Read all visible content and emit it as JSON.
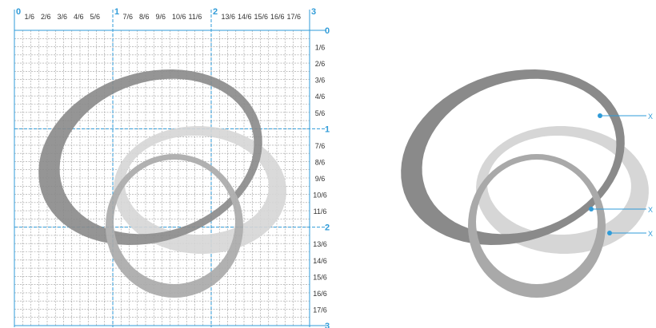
{
  "colors": {
    "grid_minor": "#9c9c9c",
    "grid_major": "#2f9bd8",
    "ring_dark": "#8a8a8a",
    "ring_mid": "#a9a9a9",
    "ring_light": "#d6d6d6",
    "label": "#333333",
    "callout": "#2f9bd8"
  },
  "grid": {
    "top_labels": [
      "0",
      "1/6",
      "2/6",
      "3/6",
      "4/6",
      "5/6",
      "1",
      "7/6",
      "8/6",
      "9/6",
      "10/6",
      "11/6",
      "2",
      "13/6",
      "14/6",
      "15/6",
      "16/6",
      "17/6",
      "3"
    ],
    "right_labels": [
      "0",
      "1/6",
      "2/6",
      "3/6",
      "4/6",
      "5/6",
      "1",
      "7/6",
      "8/6",
      "9/6",
      "10/6",
      "11/6",
      "2",
      "13/6",
      "14/6",
      "15/6",
      "16/6",
      "17/6",
      "3"
    ]
  },
  "callouts": [
    {
      "label": "X"
    },
    {
      "label": "X"
    },
    {
      "label": "X"
    }
  ]
}
